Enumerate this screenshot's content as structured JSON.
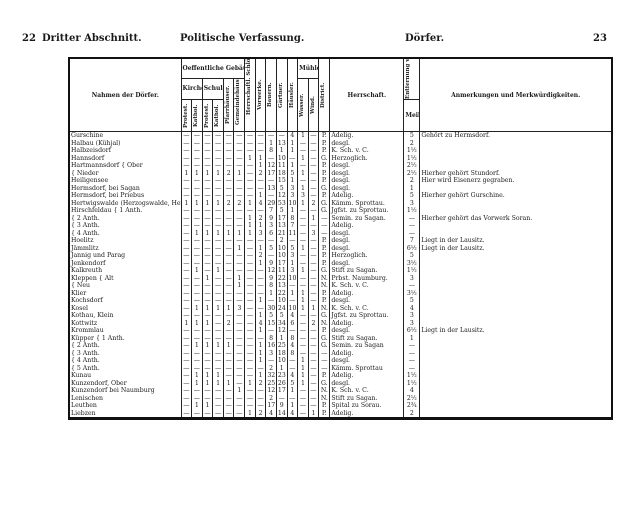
{
  "header": {
    "page_left": "22",
    "section": "Dritter Abschnitt.",
    "subject": "Politische Verfassung.",
    "topic": "Dörfer.",
    "page_right": "23"
  },
  "columns": {
    "name": "Nahmen der Dörfer.",
    "public_buildings": "Oeffentliche Gebäude.",
    "churches": "Kirchen",
    "schools": "Schulen",
    "prot": "Protest.",
    "kath": "Kathol.",
    "pfarr": "Pfarrhäuser.",
    "gemeinde": "Gemeindehäuser.",
    "herrsch": "Herrschaftl. Schlösser u. Wohnhäuser.",
    "vorwerke": "Vorwerke.",
    "bauern": "Bauern.",
    "gaertner": "Gärtner.",
    "haeusler": "Häusler.",
    "mills": "Mühlen.",
    "wasser": "Wasser.",
    "wind": "Wind.",
    "district": "District.",
    "herrschaft": "Herrschaft.",
    "distance": "Entfernung von Sagan.",
    "meil": "Meil",
    "notes": "Anmerkungen und Merkwürdigkeiten."
  },
  "rows": [
    {
      "name": "Gurschine",
      "v": [
        "—",
        "—",
        "—",
        "—",
        "—",
        "—",
        "—",
        "—",
        "—",
        "—",
        "4",
        "1",
        "—"
      ],
      "d": "P.",
      "h": "Adelig.",
      "m": "5",
      "a": "Gehört zu Hermsdorf."
    },
    {
      "name": "Halbau (Kühjal)",
      "v": [
        "—",
        "—",
        "—",
        "—",
        "—",
        "—",
        "—",
        "—",
        "1",
        "13",
        "1",
        "—",
        "—"
      ],
      "d": "P.",
      "h": "desgl.",
      "m": "2",
      "a": ""
    },
    {
      "name": "Halbzeisdorf",
      "v": [
        "—",
        "—",
        "—",
        "—",
        "—",
        "—",
        "—",
        "—",
        "8",
        "1",
        "1",
        "—",
        "—"
      ],
      "d": "P.",
      "h": "K. Sch. v. C.",
      "m": "1½",
      "a": ""
    },
    {
      "name": "Hannsdorf",
      "v": [
        "—",
        "—",
        "—",
        "—",
        "—",
        "—",
        "1",
        "1",
        "—",
        "10",
        "—",
        "1",
        "—"
      ],
      "d": "G.",
      "h": "Herzoglich.",
      "m": "1½",
      "a": ""
    },
    {
      "name": "Hartmannsdorf { Ober",
      "v": [
        "—",
        "—",
        "—",
        "—",
        "—",
        "—",
        "—",
        "1",
        "12",
        "11",
        "1",
        "—",
        "—"
      ],
      "d": "P.",
      "h": "desgl.",
      "m": "2½",
      "a": ""
    },
    {
      "name": "                  { Nieder",
      "v": [
        "1",
        "1",
        "1",
        "1",
        "2",
        "1",
        "—",
        "2",
        "17",
        "18",
        "5",
        "1",
        "—"
      ],
      "d": "P.",
      "h": "desgl.",
      "m": "2½",
      "a": "Hierher gehört Stundorf."
    },
    {
      "name": "Heiligensee",
      "v": [
        "—",
        "—",
        "—",
        "—",
        "—",
        "—",
        "—",
        "—",
        "—",
        "15",
        "1",
        "—",
        "—"
      ],
      "d": "P.",
      "h": "desgl.",
      "m": "2",
      "a": "Hier wird Eisenerz gegraben."
    },
    {
      "name": "Hermsdorf, bei Sagan",
      "v": [
        "—",
        "—",
        "—",
        "—",
        "—",
        "—",
        "—",
        "—",
        "13",
        "5",
        "3",
        "1",
        "—"
      ],
      "d": "G.",
      "h": "desgl.",
      "m": "1",
      "a": ""
    },
    {
      "name": "Hermsdorf, bei Priebus",
      "v": [
        "—",
        "—",
        "—",
        "—",
        "—",
        "—",
        "—",
        "1",
        "—",
        "12",
        "3",
        "3",
        "—"
      ],
      "d": "P.",
      "h": "Adelig.",
      "m": "5",
      "a": "Hierher gehört Gurschine."
    },
    {
      "name": "Hertwigswalde (Herzogswalde, Herrschwalde)",
      "v": [
        "1",
        "1",
        "1",
        "1",
        "2",
        "2",
        "1",
        "4",
        "29",
        "53",
        "10",
        "1",
        "2"
      ],
      "d": "G.",
      "h": "Kämm. Sprottau.",
      "m": "3",
      "a": ""
    },
    {
      "name": "Hirschfeldau { 1 Anth.",
      "v": [
        "—",
        "—",
        "—",
        "—",
        "—",
        "—",
        "—",
        "—",
        "7",
        "5",
        "1",
        "—",
        "—"
      ],
      "d": "G.",
      "h": "Jgfst. zu Sprottau.",
      "m": "1½",
      "a": ""
    },
    {
      "name": "                { 2 Anth.",
      "v": [
        "—",
        "—",
        "—",
        "—",
        "—",
        "—",
        "1",
        "2",
        "9",
        "17",
        "8",
        "—",
        "1"
      ],
      "d": "—",
      "h": "Semin. zu Sagan.",
      "m": "—",
      "a": "Hierher gehört das Vorwerk Soran."
    },
    {
      "name": "                { 3 Anth.",
      "v": [
        "—",
        "—",
        "—",
        "—",
        "—",
        "—",
        "1",
        "1",
        "3",
        "13",
        "7",
        "—",
        "—"
      ],
      "d": "—",
      "h": "Adelig.",
      "m": "—",
      "a": ""
    },
    {
      "name": "                { 4 Anth.",
      "v": [
        "—",
        "1",
        "1",
        "1",
        "1",
        "1",
        "1",
        "3",
        "6",
        "21",
        "11",
        "—",
        "3"
      ],
      "d": "—",
      "h": "desgl.",
      "m": "—",
      "a": ""
    },
    {
      "name": "Hoelitz",
      "v": [
        "—",
        "—",
        "—",
        "—",
        "—",
        "—",
        "—",
        "—",
        "—",
        "2",
        "—",
        "—",
        "—"
      ],
      "d": "P.",
      "h": "desgl.",
      "m": "7",
      "a": "Liegt in der Lausitz."
    },
    {
      "name": "Jämmlitz",
      "v": [
        "—",
        "—",
        "—",
        "—",
        "—",
        "1",
        "—",
        "1",
        "5",
        "10",
        "5",
        "1",
        "—"
      ],
      "d": "P.",
      "h": "desgl.",
      "m": "6½",
      "a": "Liegt in der Lausitz."
    },
    {
      "name": "Jannig und Parag",
      "v": [
        "—",
        "—",
        "—",
        "—",
        "—",
        "—",
        "—",
        "2",
        "—",
        "10",
        "3",
        "—",
        "—"
      ],
      "d": "P.",
      "h": "Herzoglich.",
      "m": "5",
      "a": ""
    },
    {
      "name": "Jenkendorf",
      "v": [
        "—",
        "—",
        "—",
        "—",
        "—",
        "—",
        "—",
        "1",
        "9",
        "17",
        "1",
        "—",
        "—"
      ],
      "d": "P.",
      "h": "desgl.",
      "m": "3½",
      "a": ""
    },
    {
      "name": "Kalkreuth",
      "v": [
        "—",
        "1",
        "—",
        "1",
        "—",
        "—",
        "—",
        "—",
        "12",
        "11",
        "3",
        "1",
        "—"
      ],
      "d": "G.",
      "h": "Stift zu Sagan.",
      "m": "1½",
      "a": ""
    },
    {
      "name": "Kleppen { Alt",
      "v": [
        "—",
        "—",
        "1",
        "—",
        "—",
        "1",
        "—",
        "—",
        "9",
        "22",
        "10",
        "—",
        "—"
      ],
      "d": "N.",
      "h": "Prbst. Naumburg.",
      "m": "3",
      "a": ""
    },
    {
      "name": "           { Neu",
      "v": [
        "—",
        "—",
        "—",
        "—",
        "—",
        "1",
        "—",
        "—",
        "8",
        "13",
        "—",
        "—",
        "—"
      ],
      "d": "N.",
      "h": "K. Sch. v. C.",
      "m": "—",
      "a": ""
    },
    {
      "name": "Klier",
      "v": [
        "—",
        "—",
        "—",
        "—",
        "—",
        "—",
        "—",
        "—",
        "1",
        "22",
        "1",
        "1",
        "—"
      ],
      "d": "P.",
      "h": "Adelig.",
      "m": "3½",
      "a": ""
    },
    {
      "name": "Kochsdorf",
      "v": [
        "—",
        "—",
        "—",
        "—",
        "—",
        "—",
        "—",
        "1",
        "—",
        "10",
        "—",
        "1",
        "—"
      ],
      "d": "P.",
      "h": "desgl.",
      "m": "5",
      "a": ""
    },
    {
      "name": "Kosel",
      "v": [
        "—",
        "1",
        "1",
        "1",
        "1",
        "3",
        "—",
        "—",
        "30",
        "24",
        "10",
        "1",
        "1"
      ],
      "d": "N.",
      "h": "K. Sch. v. C.",
      "m": "4",
      "a": ""
    },
    {
      "name": "Kothau, Klein",
      "v": [
        "—",
        "—",
        "—",
        "—",
        "—",
        "—",
        "—",
        "1",
        "5",
        "5",
        "4",
        "—",
        "—"
      ],
      "d": "G.",
      "h": "Jgfst. zu Sprottau.",
      "m": "3",
      "a": ""
    },
    {
      "name": "Kottwitz",
      "v": [
        "1",
        "1",
        "1",
        "—",
        "2",
        "—",
        "—",
        "4",
        "15",
        "34",
        "6",
        "—",
        "2"
      ],
      "d": "N.",
      "h": "Adelig.",
      "m": "3",
      "a": ""
    },
    {
      "name": "Krommlau",
      "v": [
        "—",
        "—",
        "—",
        "—",
        "—",
        "—",
        "—",
        "1",
        "—",
        "12",
        "—",
        "—",
        "—"
      ],
      "d": "P.",
      "h": "desgl.",
      "m": "6½",
      "a": "Liegt in der Lausitz."
    },
    {
      "name": "Küpper { 1 Anth.",
      "v": [
        "—",
        "—",
        "—",
        "—",
        "—",
        "—",
        "—",
        "—",
        "8",
        "1",
        "8",
        "—",
        "—"
      ],
      "d": "G.",
      "h": "Stift zu Sagan.",
      "m": "1",
      "a": ""
    },
    {
      "name": "          { 2 Anth.",
      "v": [
        "—",
        "1",
        "1",
        "1",
        "1",
        "—",
        "—",
        "1",
        "16",
        "25",
        "4",
        "—",
        "—"
      ],
      "d": "G.",
      "h": "Semin. zu Sagan",
      "m": "—",
      "a": ""
    },
    {
      "name": "          { 3 Anth.",
      "v": [
        "—",
        "—",
        "—",
        "—",
        "—",
        "—",
        "—",
        "1",
        "3",
        "18",
        "8",
        "—",
        "—"
      ],
      "d": "—",
      "h": "Adelig.",
      "m": "—",
      "a": ""
    },
    {
      "name": "          { 4 Anth.",
      "v": [
        "—",
        "—",
        "—",
        "—",
        "—",
        "—",
        "—",
        "1",
        "—",
        "10",
        "—",
        "1",
        "—"
      ],
      "d": "—",
      "h": "desgl.",
      "m": "—",
      "a": ""
    },
    {
      "name": "          { 5 Anth.",
      "v": [
        "—",
        "—",
        "—",
        "—",
        "—",
        "—",
        "—",
        "—",
        "2",
        "1",
        "—",
        "1",
        "—"
      ],
      "d": "—",
      "h": "Kämm. Sprottau",
      "m": "—",
      "a": ""
    },
    {
      "name": "Kunau",
      "v": [
        "—",
        "1",
        "1",
        "1",
        "—",
        "—",
        "—",
        "1",
        "32",
        "23",
        "4",
        "1",
        "—"
      ],
      "d": "P.",
      "h": "Adelig.",
      "m": "1½",
      "a": ""
    },
    {
      "name": "Kunzendorf, Ober",
      "v": [
        "—",
        "1",
        "1",
        "1",
        "1",
        "—",
        "1",
        "2",
        "25",
        "26",
        "5",
        "1",
        "—"
      ],
      "d": "G.",
      "h": "desgl.",
      "m": "1½",
      "a": ""
    },
    {
      "name": "Kunzendorf bei Naumburg",
      "v": [
        "—",
        "—",
        "—",
        "—",
        "—",
        "1",
        "—",
        "—",
        "12",
        "17",
        "1",
        "—",
        "—"
      ],
      "d": "N.",
      "h": "K. Sch. v. C.",
      "m": "4",
      "a": ""
    },
    {
      "name": "Lenischen",
      "v": [
        "—",
        "—",
        "—",
        "—",
        "—",
        "—",
        "—",
        "—",
        "2",
        "—",
        "—",
        "—",
        "—"
      ],
      "d": "N.",
      "h": "Stift zu Sagan.",
      "m": "2½",
      "a": ""
    },
    {
      "name": "Leuthen",
      "v": [
        "—",
        "1",
        "1",
        "—",
        "—",
        "—",
        "—",
        "—",
        "17",
        "9",
        "1",
        "—",
        "—"
      ],
      "d": "P.",
      "h": "Spital zu Sorau.",
      "m": "2¾",
      "a": ""
    },
    {
      "name": "Liebzen",
      "v": [
        "—",
        "—",
        "—",
        "—",
        "—",
        "—",
        "1",
        "2",
        "4",
        "14",
        "4",
        "—",
        "1"
      ],
      "d": "P.",
      "h": "Adelig.",
      "m": "2",
      "a": ""
    }
  ]
}
